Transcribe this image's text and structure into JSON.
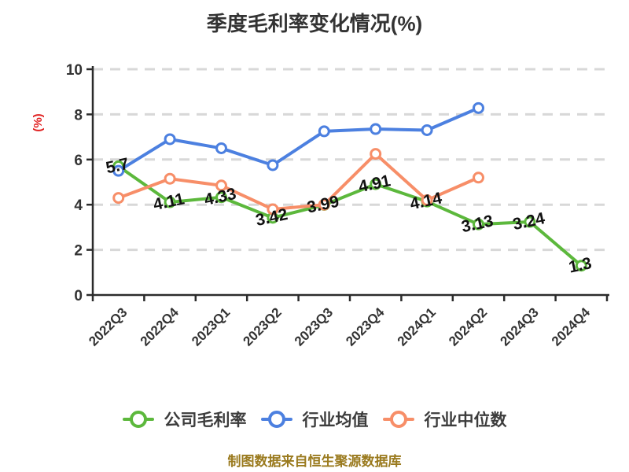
{
  "title": "季度毛利率变化情况(%)",
  "y_axis_title": "(%)",
  "caption": "制图数据来自恒生聚源数据库",
  "colors": {
    "company": "#5cb83c",
    "industry_avg": "#4c80e0",
    "industry_median": "#f78e68",
    "y_axis_title": "#e01f1f",
    "title": "#333333",
    "grid": "#d8d8d8",
    "axis": "#2b2b2b",
    "tick_label": "#333333",
    "data_label": "#111111",
    "caption": "#9a7a1e",
    "legend_label": "#3c3c3c",
    "background": "#ffffff",
    "marker_fill": "#ffffff"
  },
  "legend": {
    "items": [
      {
        "label": "公司毛利率",
        "color": "#5cb83c"
      },
      {
        "label": "行业均值",
        "color": "#4c80e0"
      },
      {
        "label": "行业中位数",
        "color": "#f78e68"
      }
    ]
  },
  "chart_data": {
    "type": "line",
    "title": "季度毛利率变化情况(%)",
    "xlabel": "",
    "ylabel": "(%)",
    "ylim": [
      0,
      10
    ],
    "yticks": [
      0,
      2,
      4,
      6,
      8,
      10
    ],
    "grid": "horizontal-dashed",
    "legend_position": "bottom",
    "categories": [
      "2022Q3",
      "2022Q4",
      "2023Q1",
      "2023Q2",
      "2023Q3",
      "2023Q4",
      "2024Q1",
      "2024Q2",
      "2024Q3",
      "2024Q4"
    ],
    "series": [
      {
        "name": "公司毛利率",
        "color": "#5cb83c",
        "values": [
          5.7,
          4.11,
          4.33,
          3.42,
          3.99,
          4.91,
          4.14,
          3.13,
          3.24,
          1.3
        ],
        "data_labels": [
          "5.7",
          "4.11",
          "4.33",
          "3.42",
          "3.99",
          "4.91",
          "4.14",
          "3.13",
          "3.24",
          "1.3"
        ]
      },
      {
        "name": "行业均值",
        "color": "#4c80e0",
        "values": [
          5.5,
          6.9,
          6.5,
          5.75,
          7.25,
          7.35,
          7.3,
          8.28,
          null,
          null
        ],
        "data_labels": null
      },
      {
        "name": "行业中位数",
        "color": "#f78e68",
        "values": [
          4.3,
          5.15,
          4.85,
          3.8,
          4.0,
          6.25,
          4.2,
          5.2,
          null,
          null
        ],
        "data_labels": null
      }
    ]
  }
}
